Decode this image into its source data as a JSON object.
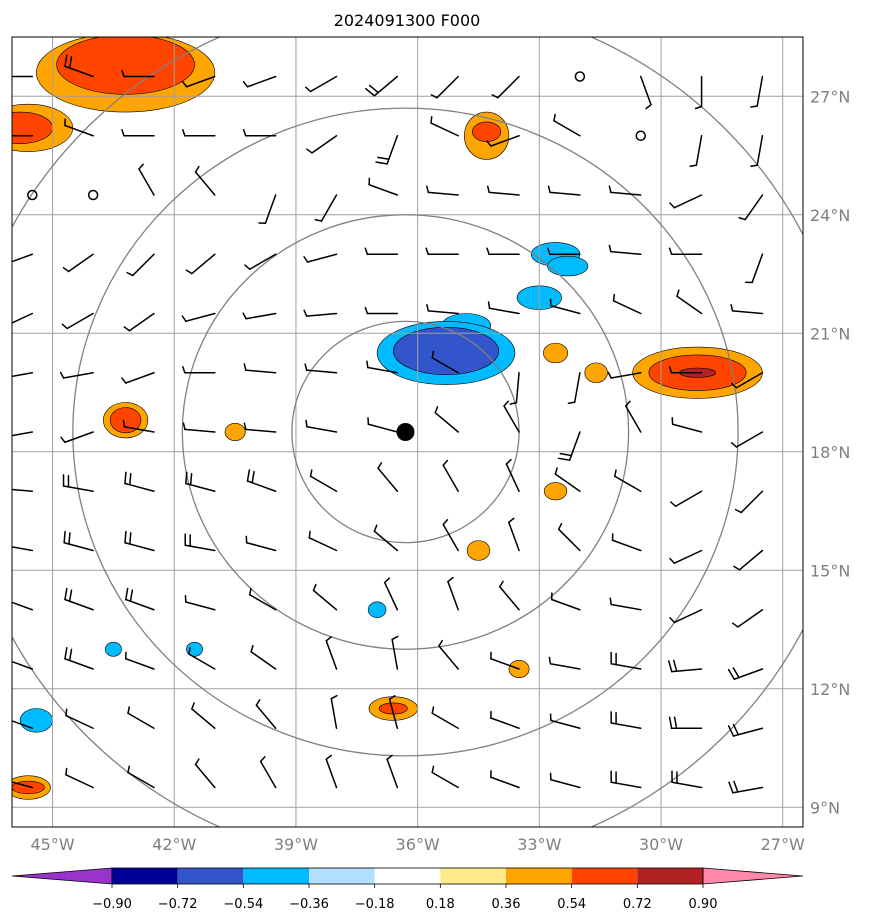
{
  "title": "2024091300 F000",
  "map": {
    "lon_range": [
      -46,
      -26.5
    ],
    "lat_range": [
      8.5,
      28.5
    ],
    "lon_ticks": [
      -45,
      -42,
      -39,
      -36,
      -33,
      -30,
      -27
    ],
    "lon_labels": [
      "45°W",
      "42°W",
      "39°W",
      "36°W",
      "33°W",
      "30°W",
      "27°W"
    ],
    "lat_ticks": [
      9,
      12,
      15,
      18,
      21,
      24,
      27
    ],
    "lat_labels": [
      "9°N",
      "12°N",
      "15°N",
      "18°N",
      "21°N",
      "24°N",
      "27°N"
    ],
    "gridline_color": "#a0a0a0",
    "ring_color": "#808080",
    "center": {
      "lon": -36.3,
      "lat": 18.5
    },
    "rings_deg": [
      2.8,
      5.5,
      8.2,
      11.0
    ]
  },
  "colorbar": {
    "colors": [
      "#9933cc",
      "#000099",
      "#3355cc",
      "#00bbff",
      "#b3e0ff",
      "#ffffff",
      "#ffeb8a",
      "#ffa500",
      "#ff4400",
      "#b22222",
      "#ff88aa"
    ],
    "tick_labels": [
      "−0.90",
      "−0.72",
      "−0.54",
      "−0.36",
      "−0.18",
      "0.18",
      "0.36",
      "0.54",
      "0.72",
      "0.90"
    ]
  },
  "shaded_areas": [
    {
      "lon": -43.2,
      "lat": 27.6,
      "rx": 2.2,
      "ry": 1.0,
      "level": 0.36
    },
    {
      "lon": -43.2,
      "lat": 27.8,
      "rx": 1.7,
      "ry": 0.75,
      "level": 0.54
    },
    {
      "lon": -45.6,
      "lat": 26.2,
      "rx": 1.1,
      "ry": 0.6,
      "level": 0.36
    },
    {
      "lon": -45.8,
      "lat": 26.2,
      "rx": 0.8,
      "ry": 0.4,
      "level": 0.54
    },
    {
      "lon": -34.3,
      "lat": 26.0,
      "rx": 0.55,
      "ry": 0.6,
      "level": 0.36
    },
    {
      "lon": -34.3,
      "lat": 26.1,
      "rx": 0.35,
      "ry": 0.25,
      "level": 0.54
    },
    {
      "lon": -32.6,
      "lat": 23.0,
      "rx": 0.6,
      "ry": 0.3,
      "level": -0.36
    },
    {
      "lon": -32.3,
      "lat": 22.7,
      "rx": 0.5,
      "ry": 0.25,
      "level": -0.36
    },
    {
      "lon": -33.0,
      "lat": 21.9,
      "rx": 0.55,
      "ry": 0.3,
      "level": -0.36
    },
    {
      "lon": -34.8,
      "lat": 21.2,
      "rx": 0.6,
      "ry": 0.3,
      "level": -0.36
    },
    {
      "lon": -35.3,
      "lat": 20.5,
      "rx": 1.7,
      "ry": 0.8,
      "level": -0.36
    },
    {
      "lon": -35.3,
      "lat": 20.55,
      "rx": 1.3,
      "ry": 0.6,
      "level": -0.54
    },
    {
      "lon": -29.1,
      "lat": 20.0,
      "rx": 1.6,
      "ry": 0.65,
      "level": 0.36
    },
    {
      "lon": -29.1,
      "lat": 20.0,
      "rx": 1.2,
      "ry": 0.45,
      "level": 0.54
    },
    {
      "lon": -29.1,
      "lat": 20.0,
      "rx": 0.45,
      "ry": 0.12,
      "level": 0.72
    },
    {
      "lon": -32.6,
      "lat": 20.5,
      "rx": 0.3,
      "ry": 0.25,
      "level": 0.36
    },
    {
      "lon": -31.6,
      "lat": 20.0,
      "rx": 0.28,
      "ry": 0.25,
      "level": 0.36
    },
    {
      "lon": -43.2,
      "lat": 18.8,
      "rx": 0.55,
      "ry": 0.45,
      "level": 0.36
    },
    {
      "lon": -43.2,
      "lat": 18.8,
      "rx": 0.38,
      "ry": 0.32,
      "level": 0.54
    },
    {
      "lon": -40.5,
      "lat": 18.5,
      "rx": 0.25,
      "ry": 0.22,
      "level": 0.36
    },
    {
      "lon": -32.6,
      "lat": 17.0,
      "rx": 0.28,
      "ry": 0.22,
      "level": 0.36
    },
    {
      "lon": -34.5,
      "lat": 15.5,
      "rx": 0.28,
      "ry": 0.25,
      "level": 0.36
    },
    {
      "lon": -37.0,
      "lat": 14.0,
      "rx": 0.22,
      "ry": 0.2,
      "level": -0.36
    },
    {
      "lon": -43.5,
      "lat": 13.0,
      "rx": 0.2,
      "ry": 0.18,
      "level": -0.36
    },
    {
      "lon": -41.5,
      "lat": 13.0,
      "rx": 0.2,
      "ry": 0.18,
      "level": -0.36
    },
    {
      "lon": -33.5,
      "lat": 12.5,
      "rx": 0.25,
      "ry": 0.22,
      "level": 0.36
    },
    {
      "lon": -45.4,
      "lat": 11.2,
      "rx": 0.4,
      "ry": 0.3,
      "level": -0.36
    },
    {
      "lon": -36.6,
      "lat": 11.5,
      "rx": 0.6,
      "ry": 0.3,
      "level": 0.36
    },
    {
      "lon": -36.6,
      "lat": 11.5,
      "rx": 0.35,
      "ry": 0.14,
      "level": 0.54
    },
    {
      "lon": -45.6,
      "lat": 9.5,
      "rx": 0.55,
      "ry": 0.3,
      "level": 0.36
    },
    {
      "lon": -45.6,
      "lat": 9.5,
      "rx": 0.4,
      "ry": 0.16,
      "level": 0.54
    }
  ],
  "barb_grid": {
    "lon_start": -45.5,
    "lon_step": 1.5,
    "cols": 13,
    "lat_start": 27.5,
    "lat_step": -1.5,
    "rows": 13
  },
  "barb_rows": [
    [
      [
        270,
        5
      ],
      [
        290,
        10
      ],
      [
        270,
        5
      ],
      [
        250,
        5
      ],
      [
        250,
        5
      ],
      [
        240,
        5
      ],
      [
        230,
        10
      ],
      [
        225,
        5
      ],
      [
        225,
        5
      ],
      [
        0,
        0
      ],
      [
        160,
        5
      ],
      [
        180,
        5
      ],
      [
        190,
        5
      ]
    ],
    [
      [
        270,
        5
      ],
      [
        290,
        5
      ],
      [
        270,
        5
      ],
      [
        270,
        5
      ],
      [
        270,
        5
      ],
      [
        235,
        5
      ],
      [
        200,
        10
      ],
      [
        295,
        5
      ],
      [
        250,
        5
      ],
      [
        300,
        5
      ],
      [
        0,
        0
      ],
      [
        190,
        5
      ],
      [
        190,
        5
      ]
    ],
    [
      [
        0,
        0
      ],
      [
        0,
        0
      ],
      [
        330,
        5
      ],
      [
        320,
        5
      ],
      [
        200,
        5
      ],
      [
        210,
        5
      ],
      [
        290,
        5
      ],
      [
        275,
        5
      ],
      [
        275,
        5
      ],
      [
        275,
        5
      ],
      [
        275,
        5
      ],
      [
        245,
        5
      ],
      [
        215,
        5
      ]
    ],
    [
      [
        250,
        5
      ],
      [
        235,
        5
      ],
      [
        225,
        5
      ],
      [
        230,
        5
      ],
      [
        240,
        5
      ],
      [
        255,
        5
      ],
      [
        270,
        5
      ],
      [
        270,
        5
      ],
      [
        270,
        5
      ],
      [
        270,
        5
      ],
      [
        275,
        5
      ],
      [
        270,
        5
      ],
      [
        200,
        5
      ]
    ],
    [
      [
        245,
        5
      ],
      [
        240,
        5
      ],
      [
        235,
        5
      ],
      [
        255,
        5
      ],
      [
        260,
        5
      ],
      [
        265,
        5
      ],
      [
        270,
        5
      ],
      [
        275,
        5
      ],
      [
        280,
        5
      ],
      [
        285,
        5
      ],
      [
        295,
        5
      ],
      [
        305,
        5
      ],
      [
        275,
        5
      ]
    ],
    [
      [
        260,
        5
      ],
      [
        260,
        5
      ],
      [
        250,
        5
      ],
      [
        270,
        5
      ],
      [
        275,
        5
      ],
      [
        275,
        5
      ],
      [
        280,
        5
      ],
      [
        300,
        5
      ],
      [
        185,
        5
      ],
      [
        190,
        5
      ],
      [
        260,
        5
      ],
      [
        270,
        5
      ],
      [
        240,
        5
      ]
    ],
    [
      [
        260,
        5
      ],
      [
        250,
        5
      ],
      [
        280,
        5
      ],
      [
        275,
        5
      ],
      [
        275,
        5
      ],
      [
        280,
        5
      ],
      [
        285,
        5
      ],
      [
        310,
        5
      ],
      [
        330,
        5
      ],
      [
        200,
        10
      ],
      [
        330,
        5
      ],
      [
        285,
        5
      ],
      [
        240,
        5
      ]
    ],
    [
      [
        275,
        10
      ],
      [
        280,
        10
      ],
      [
        285,
        10
      ],
      [
        285,
        10
      ],
      [
        290,
        10
      ],
      [
        300,
        5
      ],
      [
        320,
        5
      ],
      [
        330,
        5
      ],
      [
        335,
        5
      ],
      [
        305,
        5
      ],
      [
        300,
        5
      ],
      [
        240,
        5
      ],
      [
        225,
        5
      ]
    ],
    [
      [
        280,
        10
      ],
      [
        285,
        10
      ],
      [
        285,
        10
      ],
      [
        280,
        10
      ],
      [
        285,
        5
      ],
      [
        295,
        5
      ],
      [
        310,
        5
      ],
      [
        330,
        5
      ],
      [
        340,
        5
      ],
      [
        315,
        5
      ],
      [
        290,
        5
      ],
      [
        245,
        5
      ],
      [
        230,
        5
      ]
    ],
    [
      [
        290,
        10
      ],
      [
        290,
        10
      ],
      [
        290,
        10
      ],
      [
        285,
        5
      ],
      [
        300,
        5
      ],
      [
        310,
        5
      ],
      [
        335,
        5
      ],
      [
        340,
        5
      ],
      [
        320,
        5
      ],
      [
        290,
        5
      ],
      [
        280,
        5
      ],
      [
        245,
        5
      ],
      [
        235,
        5
      ]
    ],
    [
      [
        290,
        10
      ],
      [
        290,
        10
      ],
      [
        290,
        5
      ],
      [
        300,
        5
      ],
      [
        305,
        5
      ],
      [
        340,
        5
      ],
      [
        350,
        5
      ],
      [
        320,
        5
      ],
      [
        290,
        5
      ],
      [
        280,
        5
      ],
      [
        280,
        10
      ],
      [
        265,
        10
      ],
      [
        250,
        10
      ]
    ],
    [
      [
        290,
        10
      ],
      [
        295,
        5
      ],
      [
        300,
        5
      ],
      [
        310,
        5
      ],
      [
        320,
        5
      ],
      [
        350,
        5
      ],
      [
        345,
        5
      ],
      [
        300,
        5
      ],
      [
        290,
        5
      ],
      [
        285,
        5
      ],
      [
        280,
        10
      ],
      [
        270,
        10
      ],
      [
        255,
        10
      ]
    ],
    [
      [
        285,
        10
      ],
      [
        295,
        5
      ],
      [
        300,
        5
      ],
      [
        320,
        5
      ],
      [
        330,
        5
      ],
      [
        340,
        5
      ],
      [
        340,
        5
      ],
      [
        300,
        5
      ],
      [
        290,
        5
      ],
      [
        285,
        5
      ],
      [
        280,
        10
      ],
      [
        280,
        10
      ],
      [
        260,
        10
      ]
    ]
  ]
}
